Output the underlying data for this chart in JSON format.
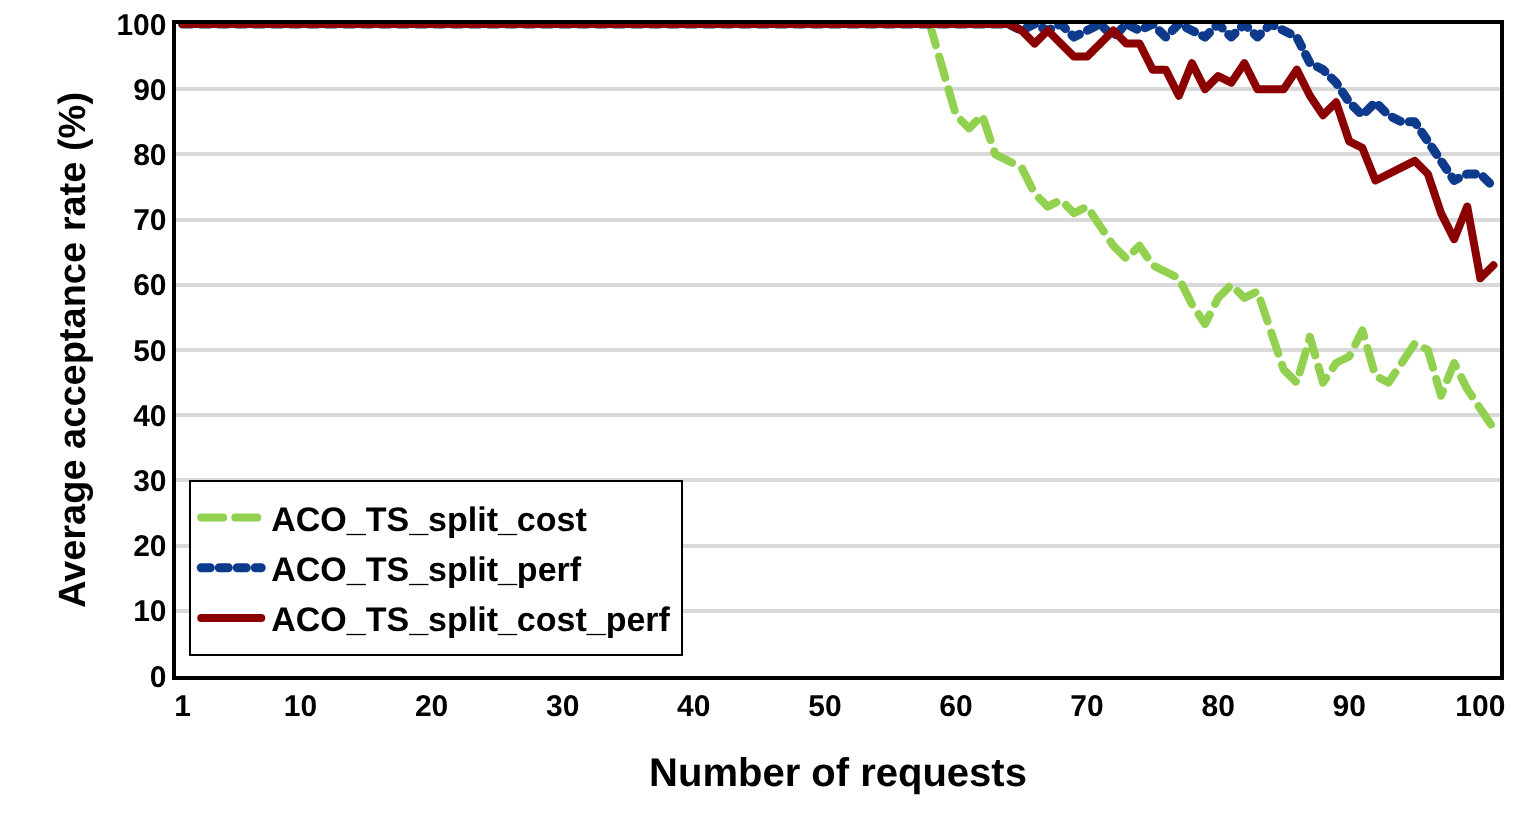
{
  "chart_data": {
    "type": "line",
    "xlabel": "Number of requests",
    "ylabel": "Average acceptance rate (%)",
    "x": [
      1,
      2,
      3,
      4,
      5,
      6,
      7,
      8,
      9,
      10,
      11,
      12,
      13,
      14,
      15,
      16,
      17,
      18,
      19,
      20,
      21,
      22,
      23,
      24,
      25,
      26,
      27,
      28,
      29,
      30,
      31,
      32,
      33,
      34,
      35,
      36,
      37,
      38,
      39,
      40,
      41,
      42,
      43,
      44,
      45,
      46,
      47,
      48,
      49,
      50,
      51,
      52,
      53,
      54,
      55,
      56,
      57,
      58,
      59,
      60,
      61,
      62,
      63,
      64,
      65,
      66,
      67,
      68,
      69,
      70,
      71,
      72,
      73,
      74,
      75,
      76,
      77,
      78,
      79,
      80,
      81,
      82,
      83,
      84,
      85,
      86,
      87,
      88,
      89,
      90,
      91,
      92,
      93,
      94,
      95,
      96,
      97,
      98,
      99,
      100,
      101
    ],
    "series": [
      {
        "name": "ACO_TS_split_cost",
        "color": "#92d050",
        "line_style": "dashed",
        "values": [
          null,
          null,
          null,
          null,
          null,
          null,
          null,
          null,
          null,
          null,
          null,
          null,
          null,
          null,
          null,
          null,
          null,
          null,
          null,
          null,
          null,
          null,
          null,
          null,
          null,
          null,
          null,
          null,
          null,
          null,
          null,
          null,
          null,
          null,
          null,
          null,
          null,
          null,
          null,
          null,
          null,
          null,
          null,
          null,
          null,
          null,
          null,
          null,
          null,
          null,
          null,
          null,
          null,
          null,
          null,
          null,
          null,
          100,
          93,
          86,
          84,
          86,
          80,
          79,
          78,
          74,
          72,
          73,
          71,
          72,
          69,
          66,
          64,
          66,
          63,
          62,
          61,
          57,
          54,
          58,
          60,
          58,
          59,
          53,
          47,
          45,
          52,
          45,
          48,
          49,
          53,
          46,
          45,
          48,
          51,
          50,
          43,
          48,
          44,
          41,
          38
        ]
      },
      {
        "name": "ACO_TS_split_perf",
        "color": "#0e3a8c",
        "line_style": "dotted",
        "values": [
          100,
          100,
          100,
          100,
          100,
          100,
          100,
          100,
          100,
          100,
          100,
          100,
          100,
          100,
          100,
          100,
          100,
          100,
          100,
          100,
          100,
          100,
          100,
          100,
          100,
          100,
          100,
          100,
          100,
          100,
          100,
          100,
          100,
          100,
          100,
          100,
          100,
          100,
          100,
          100,
          100,
          100,
          100,
          100,
          100,
          100,
          100,
          100,
          100,
          100,
          100,
          100,
          100,
          100,
          100,
          100,
          100,
          100,
          100,
          100,
          100,
          100,
          100,
          100,
          99,
          100,
          99,
          100,
          98,
          99,
          100,
          98,
          100,
          99,
          100,
          98,
          100,
          99,
          98,
          100,
          98,
          100,
          98,
          100,
          99,
          98,
          94,
          93,
          91,
          88,
          86,
          88,
          86,
          85,
          85,
          82,
          79,
          76,
          77,
          77,
          75
        ]
      },
      {
        "name": "ACO_TS_split_cost_perf",
        "color": "#8b0000",
        "line_style": "solid",
        "values": [
          100,
          100,
          100,
          100,
          100,
          100,
          100,
          100,
          100,
          100,
          100,
          100,
          100,
          100,
          100,
          100,
          100,
          100,
          100,
          100,
          100,
          100,
          100,
          100,
          100,
          100,
          100,
          100,
          100,
          100,
          100,
          100,
          100,
          100,
          100,
          100,
          100,
          100,
          100,
          100,
          100,
          100,
          100,
          100,
          100,
          100,
          100,
          100,
          100,
          100,
          100,
          100,
          100,
          100,
          100,
          100,
          100,
          100,
          100,
          100,
          100,
          100,
          100,
          100,
          99,
          97,
          99,
          97,
          95,
          95,
          97,
          99,
          97,
          97,
          93,
          93,
          89,
          94,
          90,
          92,
          91,
          94,
          90,
          90,
          90,
          93,
          89,
          86,
          88,
          82,
          81,
          76,
          77,
          78,
          79,
          77,
          71,
          67,
          72,
          61,
          63
        ]
      }
    ],
    "xlim": [
      0.5,
      101.5
    ],
    "xticks": [
      1,
      10,
      20,
      30,
      40,
      50,
      60,
      70,
      80,
      90,
      100
    ],
    "ylim": [
      0,
      100
    ],
    "yticks": [
      0,
      10,
      20,
      30,
      40,
      50,
      60,
      70,
      80,
      90,
      100
    ],
    "grid": "y",
    "legend": "bottom left"
  }
}
